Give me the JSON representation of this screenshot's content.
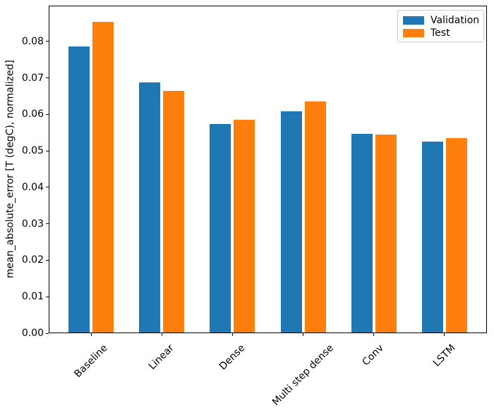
{
  "chart_data": {
    "type": "bar",
    "title": "",
    "categories": [
      "Baseline",
      "Linear",
      "Dense",
      "Multi step dense",
      "Conv",
      "LSTM"
    ],
    "series": [
      {
        "name": "Validation",
        "color": "#1f77b4",
        "values": [
          0.0786,
          0.0687,
          0.0573,
          0.0608,
          0.0546,
          0.0525
        ]
      },
      {
        "name": "Test",
        "color": "#ff7f0e",
        "values": [
          0.0854,
          0.0664,
          0.0585,
          0.0635,
          0.0544,
          0.0535
        ]
      }
    ],
    "xlabel": "",
    "ylabel": "mean_absolute_error [T (degC), normalized]",
    "ylim": [
      0,
      0.0898
    ],
    "xlim": [
      -0.6,
      5.6
    ],
    "ytick_values": [
      0.0,
      0.01,
      0.02,
      0.03,
      0.04,
      0.05,
      0.06,
      0.07,
      0.08
    ],
    "ytick_labels": [
      "0.00",
      "0.01",
      "0.02",
      "0.03",
      "0.04",
      "0.05",
      "0.06",
      "0.07",
      "0.08"
    ],
    "xtick_rotation": 45,
    "bar_width": 0.3,
    "bar_offset": 0.17,
    "grid": false,
    "legend": {
      "position": "upper right"
    }
  }
}
